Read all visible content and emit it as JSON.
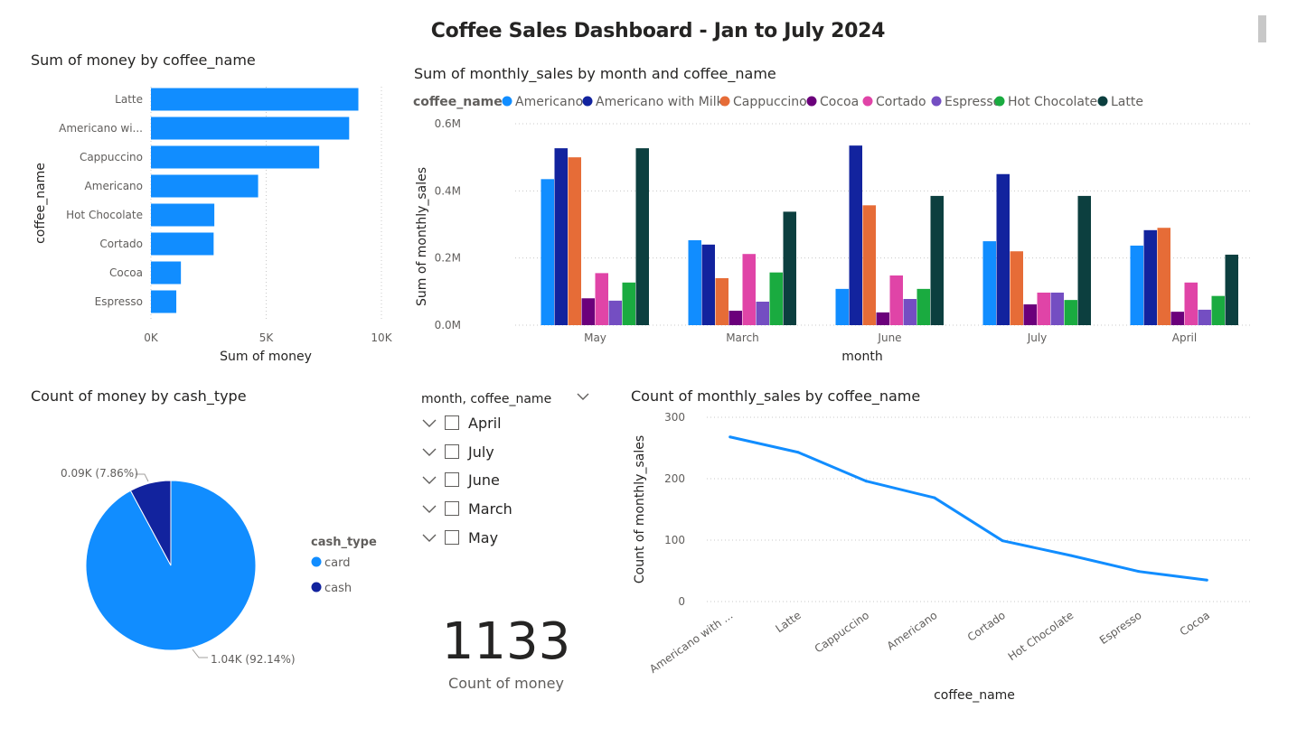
{
  "dashboard": {
    "title": "Coffee Sales Dashboard - Jan to July 2024"
  },
  "colors": {
    "Americano": "#118DFF",
    "Americano with Milk": "#12239E",
    "Cappuccino": "#E66C37",
    "Cocoa": "#6B007B",
    "Cortado": "#E044A7",
    "Espresso": "#744EC2",
    "Hot Chocolate": "#1AAB40",
    "Latte": "#0C3F3F",
    "bar": "#118DFF",
    "card": "#118DFF",
    "cash": "#12239E",
    "line": "#118DFF"
  },
  "visuals": {
    "bar": {
      "title": "Sum of money by coffee_name"
    },
    "column": {
      "title": "Sum of monthly_sales by month and coffee_name"
    },
    "pie": {
      "title": "Count of money by cash_type"
    },
    "line": {
      "title": "Count of monthly_sales by coffee_name"
    },
    "card": {
      "value": "1133",
      "label": "Count of money"
    },
    "slicer": {
      "header": "month, coffee_name",
      "items": [
        {
          "label": "April"
        },
        {
          "label": "July"
        },
        {
          "label": "June"
        },
        {
          "label": "March"
        },
        {
          "label": "May"
        }
      ]
    }
  },
  "chart_data": [
    {
      "id": "bar",
      "type": "bar",
      "orientation": "horizontal",
      "title": "Sum of money by coffee_name",
      "xlabel": "Sum of money",
      "ylabel": "coffee_name",
      "categories": [
        "Latte",
        "Americano wi...",
        "Cappuccino",
        "Americano",
        "Hot Chocolate",
        "Cortado",
        "Cocoa",
        "Espresso"
      ],
      "values": [
        9000,
        8600,
        7300,
        4650,
        2750,
        2720,
        1300,
        1100
      ],
      "xlim": [
        0,
        10000
      ],
      "xticks": [
        0,
        5000,
        10000
      ],
      "xtick_labels": [
        "0K",
        "5K",
        "10K"
      ],
      "grid": true
    },
    {
      "id": "column",
      "type": "bar",
      "orientation": "vertical",
      "title": "Sum of monthly_sales by month and coffee_name",
      "xlabel": "month",
      "ylabel": "Sum of monthly_sales",
      "legend_title": "coffee_name",
      "legend_position": "top-left",
      "categories": [
        "May",
        "March",
        "June",
        "July",
        "April"
      ],
      "series": [
        {
          "name": "Americano",
          "values": [
            0.435,
            0.253,
            0.108,
            0.25,
            0.237
          ]
        },
        {
          "name": "Americano with Milk",
          "values": [
            0.527,
            0.24,
            0.535,
            0.45,
            0.283
          ]
        },
        {
          "name": "Cappuccino",
          "values": [
            0.5,
            0.14,
            0.357,
            0.22,
            0.29
          ]
        },
        {
          "name": "Cocoa",
          "values": [
            0.08,
            0.043,
            0.038,
            0.062,
            0.04
          ]
        },
        {
          "name": "Cortado",
          "values": [
            0.155,
            0.212,
            0.148,
            0.097,
            0.127
          ]
        },
        {
          "name": "Espresso",
          "values": [
            0.073,
            0.07,
            0.078,
            0.097,
            0.046
          ]
        },
        {
          "name": "Hot Chocolate",
          "values": [
            0.127,
            0.157,
            0.108,
            0.075,
            0.087
          ]
        },
        {
          "name": "Latte",
          "values": [
            0.527,
            0.338,
            0.385,
            0.385,
            0.21
          ]
        }
      ],
      "ylim": [
        0,
        0.6
      ],
      "yticks": [
        0,
        0.2,
        0.4,
        0.6
      ],
      "ytick_labels": [
        "0.0M",
        "0.2M",
        "0.4M",
        "0.6M"
      ],
      "grid": true
    },
    {
      "id": "pie",
      "type": "pie",
      "title": "Count of money by cash_type",
      "legend_title": "cash_type",
      "legend_position": "right",
      "labels": [
        "card",
        "cash"
      ],
      "values": [
        1044,
        89
      ],
      "percent": [
        92.14,
        7.86
      ],
      "data_labels": [
        "1.04K (92.14%)",
        "0.09K (7.86%)"
      ]
    },
    {
      "id": "line",
      "type": "line",
      "title": "Count of monthly_sales by coffee_name",
      "xlabel": "coffee_name",
      "ylabel": "Count of monthly_sales",
      "categories": [
        "Americano with ...",
        "Latte",
        "Cappuccino",
        "Americano",
        "Cortado",
        "Hot Chocolate",
        "Espresso",
        "Cocoa"
      ],
      "values": [
        268,
        243,
        196,
        169,
        99,
        75,
        49,
        35
      ],
      "ylim": [
        0,
        300
      ],
      "yticks": [
        0,
        100,
        200,
        300
      ],
      "grid": true
    }
  ]
}
